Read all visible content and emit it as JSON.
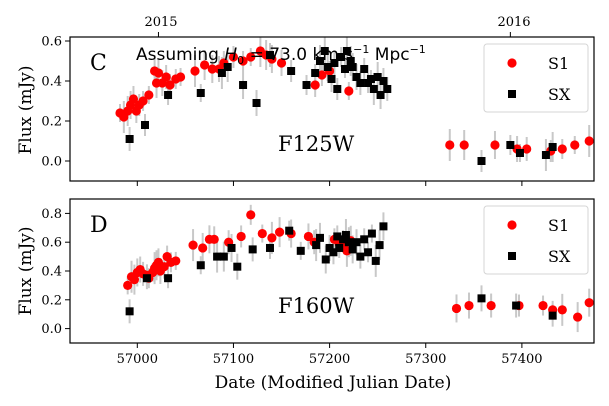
{
  "chart_data": {
    "type": "scatter",
    "xlabel": "Date (Modified Julian Date)",
    "ylabel": "Flux (mJy)",
    "xlim": [
      56930,
      57475
    ],
    "top_axis": {
      "ticks": [
        {
          "value": 57022,
          "label": "2015"
        },
        {
          "value": 57388,
          "label": "2016"
        }
      ]
    },
    "x_ticks": [
      57000,
      57100,
      57200,
      57300,
      57400
    ],
    "annotation": {
      "prefix": "Assuming ",
      "h": "H",
      "sub": "0",
      "middle": " = 73.0 km s",
      "sup1": "−1",
      "suffix": " Mpc",
      "sup2": "−1"
    },
    "panels": [
      {
        "letter": "C",
        "filter": "F125W",
        "ylim": [
          -0.1,
          0.62
        ],
        "y_ticks": [
          0.0,
          0.2,
          0.4,
          0.6
        ],
        "y_tick_labels": [
          "0.0",
          "0.2",
          "0.4",
          "0.6"
        ],
        "series": [
          {
            "name": "S1",
            "marker": "circle",
            "color": "#ff0000",
            "points": [
              [
                56982,
                0.24
              ],
              [
                56986,
                0.22
              ],
              [
                56990,
                0.25
              ],
              [
                56993,
                0.28
              ],
              [
                56996,
                0.31
              ],
              [
                56999,
                0.25
              ],
              [
                57002,
                0.28
              ],
              [
                57006,
                0.3
              ],
              [
                57012,
                0.33
              ],
              [
                57018,
                0.45
              ],
              [
                57020,
                0.39
              ],
              [
                57022,
                0.44
              ],
              [
                57026,
                0.39
              ],
              [
                57030,
                0.42
              ],
              [
                57034,
                0.38
              ],
              [
                57040,
                0.41
              ],
              [
                57045,
                0.42
              ],
              [
                57060,
                0.45
              ],
              [
                57070,
                0.48
              ],
              [
                57078,
                0.46
              ],
              [
                57085,
                0.46
              ],
              [
                57090,
                0.49
              ],
              [
                57100,
                0.52
              ],
              [
                57110,
                0.5
              ],
              [
                57118,
                0.52
              ],
              [
                57128,
                0.55
              ],
              [
                57134,
                0.53
              ],
              [
                57140,
                0.51
              ],
              [
                57150,
                0.49
              ],
              [
                57185,
                0.38
              ],
              [
                57192,
                0.43
              ],
              [
                57200,
                0.45
              ],
              [
                57220,
                0.35
              ],
              [
                57325,
                0.08
              ],
              [
                57340,
                0.08
              ],
              [
                57372,
                0.08
              ],
              [
                57395,
                0.06
              ],
              [
                57405,
                0.06
              ],
              [
                57430,
                0.05
              ],
              [
                57442,
                0.06
              ],
              [
                57455,
                0.08
              ],
              [
                57470,
                0.1
              ]
            ]
          },
          {
            "name": "SX",
            "marker": "square",
            "color": "#000000",
            "points": [
              [
                56992,
                0.11
              ],
              [
                57008,
                0.18
              ],
              [
                57032,
                0.33
              ],
              [
                57066,
                0.34
              ],
              [
                57088,
                0.44
              ],
              [
                57094,
                0.47
              ],
              [
                57110,
                0.38
              ],
              [
                57124,
                0.29
              ],
              [
                57138,
                0.53
              ],
              [
                57160,
                0.45
              ],
              [
                57176,
                0.38
              ],
              [
                57185,
                0.44
              ],
              [
                57190,
                0.5
              ],
              [
                57195,
                0.55
              ],
              [
                57198,
                0.47
              ],
              [
                57202,
                0.41
              ],
              [
                57205,
                0.49
              ],
              [
                57208,
                0.36
              ],
              [
                57212,
                0.52
              ],
              [
                57216,
                0.46
              ],
              [
                57218,
                0.55
              ],
              [
                57222,
                0.5
              ],
              [
                57224,
                0.47
              ],
              [
                57228,
                0.42
              ],
              [
                57232,
                0.39
              ],
              [
                57236,
                0.46
              ],
              [
                57240,
                0.39
              ],
              [
                57243,
                0.41
              ],
              [
                57246,
                0.36
              ],
              [
                57250,
                0.42
              ],
              [
                57253,
                0.33
              ],
              [
                57256,
                0.4
              ],
              [
                57260,
                0.36
              ],
              [
                57358,
                0.0
              ],
              [
                57388,
                0.08
              ],
              [
                57398,
                0.04
              ],
              [
                57425,
                0.03
              ],
              [
                57432,
                0.07
              ]
            ]
          }
        ]
      },
      {
        "letter": "D",
        "filter": "F160W",
        "ylim": [
          -0.1,
          0.9
        ],
        "y_ticks": [
          0.0,
          0.2,
          0.4,
          0.6,
          0.8
        ],
        "y_tick_labels": [
          "0.0",
          "0.2",
          "0.4",
          "0.6",
          "0.8"
        ],
        "series": [
          {
            "name": "S1",
            "marker": "circle",
            "color": "#ff0000",
            "points": [
              [
                56990,
                0.3
              ],
              [
                56994,
                0.36
              ],
              [
                56997,
                0.34
              ],
              [
                57000,
                0.39
              ],
              [
                57003,
                0.41
              ],
              [
                57006,
                0.38
              ],
              [
                57010,
                0.37
              ],
              [
                57012,
                0.35
              ],
              [
                57016,
                0.39
              ],
              [
                57018,
                0.42
              ],
              [
                57020,
                0.44
              ],
              [
                57022,
                0.46
              ],
              [
                57024,
                0.4
              ],
              [
                57028,
                0.43
              ],
              [
                57031,
                0.5
              ],
              [
                57035,
                0.46
              ],
              [
                57040,
                0.47
              ],
              [
                57058,
                0.58
              ],
              [
                57068,
                0.56
              ],
              [
                57075,
                0.62
              ],
              [
                57080,
                0.62
              ],
              [
                57095,
                0.6
              ],
              [
                57108,
                0.64
              ],
              [
                57118,
                0.79
              ],
              [
                57130,
                0.66
              ],
              [
                57140,
                0.63
              ],
              [
                57148,
                0.67
              ],
              [
                57160,
                0.66
              ],
              [
                57178,
                0.64
              ],
              [
                57184,
                0.6
              ],
              [
                57205,
                0.62
              ],
              [
                57210,
                0.59
              ],
              [
                57215,
                0.58
              ],
              [
                57218,
                0.54
              ],
              [
                57222,
                0.61
              ],
              [
                57332,
                0.14
              ],
              [
                57345,
                0.16
              ],
              [
                57368,
                0.16
              ],
              [
                57397,
                0.16
              ],
              [
                57422,
                0.16
              ],
              [
                57432,
                0.13
              ],
              [
                57442,
                0.13
              ],
              [
                57458,
                0.08
              ],
              [
                57470,
                0.18
              ]
            ]
          },
          {
            "name": "SX",
            "marker": "square",
            "color": "#000000",
            "points": [
              [
                56992,
                0.12
              ],
              [
                57010,
                0.35
              ],
              [
                57032,
                0.35
              ],
              [
                57066,
                0.44
              ],
              [
                57083,
                0.5
              ],
              [
                57090,
                0.5
              ],
              [
                57098,
                0.56
              ],
              [
                57104,
                0.43
              ],
              [
                57120,
                0.55
              ],
              [
                57138,
                0.56
              ],
              [
                57158,
                0.68
              ],
              [
                57170,
                0.54
              ],
              [
                57186,
                0.58
              ],
              [
                57190,
                0.63
              ],
              [
                57196,
                0.48
              ],
              [
                57200,
                0.56
              ],
              [
                57204,
                0.53
              ],
              [
                57208,
                0.64
              ],
              [
                57210,
                0.56
              ],
              [
                57214,
                0.62
              ],
              [
                57217,
                0.65
              ],
              [
                57220,
                0.6
              ],
              [
                57224,
                0.55
              ],
              [
                57228,
                0.6
              ],
              [
                57232,
                0.5
              ],
              [
                57236,
                0.62
              ],
              [
                57240,
                0.53
              ],
              [
                57244,
                0.66
              ],
              [
                57248,
                0.47
              ],
              [
                57252,
                0.58
              ],
              [
                57256,
                0.71
              ],
              [
                57358,
                0.21
              ],
              [
                57394,
                0.16
              ],
              [
                57432,
                0.09
              ]
            ]
          }
        ]
      }
    ]
  }
}
